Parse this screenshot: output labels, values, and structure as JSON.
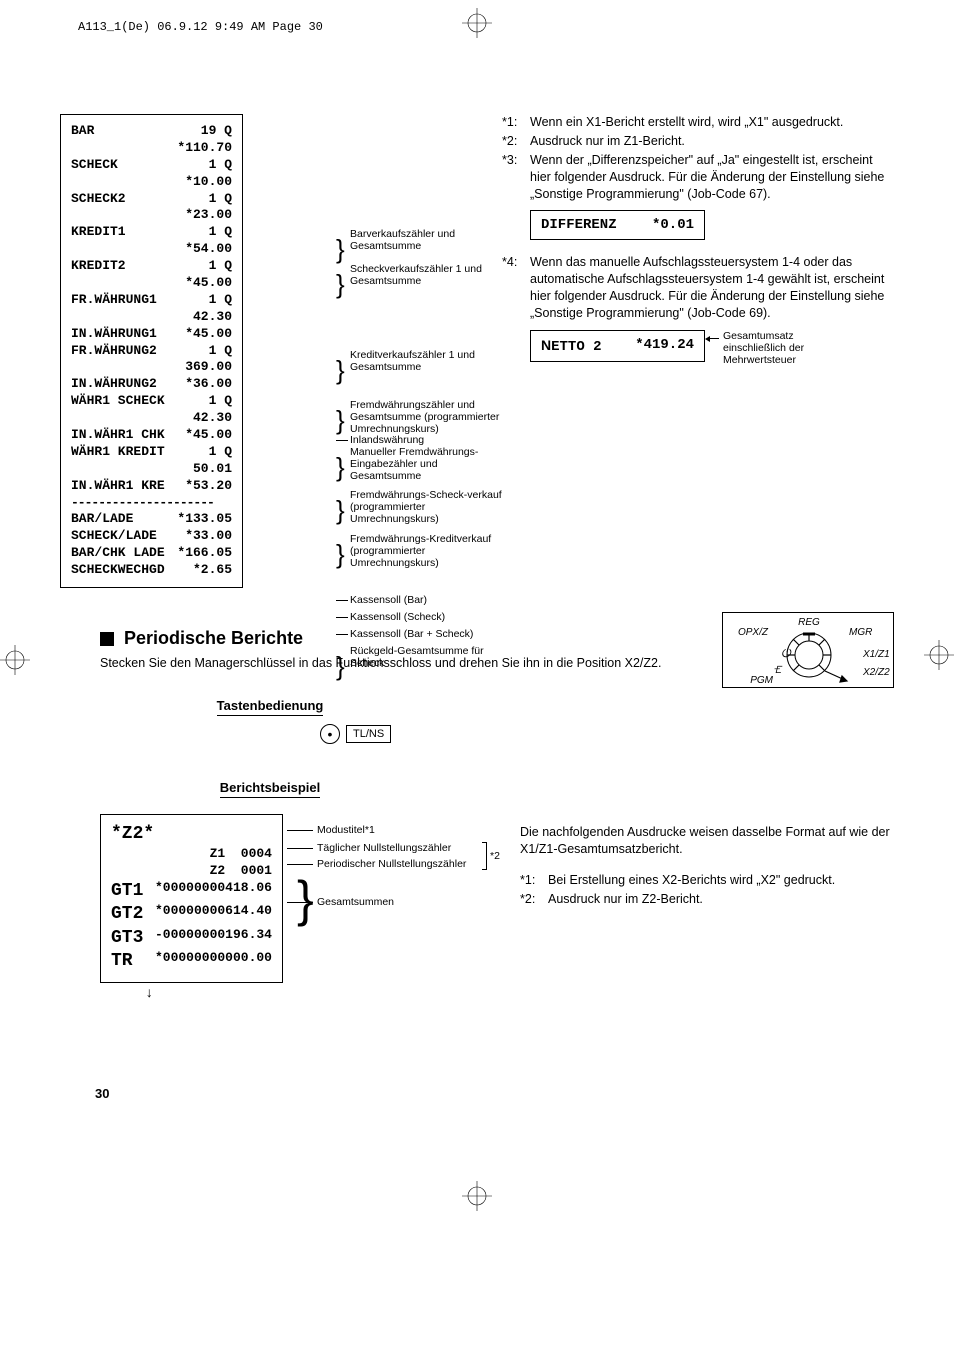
{
  "header": "A113_1(De)  06.9.12 9:49 AM  Page 30",
  "receipt1": {
    "rows": [
      [
        "BAR",
        "19 Q"
      ],
      [
        "",
        "*110.70"
      ],
      [
        "SCHECK",
        "1 Q"
      ],
      [
        "",
        "*10.00"
      ],
      [
        "SCHECK2",
        "1 Q"
      ],
      [
        "",
        "*23.00"
      ],
      [
        "KREDIT1",
        "1 Q"
      ],
      [
        "",
        "*54.00"
      ],
      [
        "KREDIT2",
        "1 Q"
      ],
      [
        "",
        "*45.00"
      ],
      [
        "FR.WÄHRUNG1",
        "1 Q"
      ],
      [
        "",
        "42.30"
      ],
      [
        "IN.WÄHRUNG1",
        "*45.00"
      ],
      [
        "FR.WÄHRUNG2",
        "1 Q"
      ],
      [
        "",
        "369.00"
      ],
      [
        "IN.WÄHRUNG2",
        "*36.00"
      ],
      [
        "WÄHR1 SCHECK",
        "1 Q"
      ],
      [
        "",
        "42.30"
      ],
      [
        "IN.WÄHR1 CHK",
        "*45.00"
      ],
      [
        "WÄHR1 KREDIT",
        "1 Q"
      ],
      [
        "",
        "50.01"
      ],
      [
        "IN.WÄHR1 KRE",
        "*53.20"
      ]
    ],
    "sep": "---------------------",
    "bottom": [
      [
        "BAR/LADE",
        "*133.05"
      ],
      [
        "SCHECK/LADE",
        "*33.00"
      ],
      [
        "BAR/CHK LADE",
        "*166.05"
      ],
      [
        "SCHECKWECHGD",
        "*2.65"
      ]
    ]
  },
  "anno1": [
    "Barverkaufszähler und Gesamtsumme",
    "Scheckverkaufszähler 1 und Gesamtsumme",
    "Kreditverkaufszähler 1 und Gesamtsumme",
    "Fremdwährungszähler und Gesamtsumme (programmierter Umrechnungskurs)",
    "Inlandswährung",
    "Manueller Fremdwährungs-Eingabezähler und Gesamtsumme",
    "Fremdwährungs-Scheck-verkauf (programmierter Umrechnungskurs)",
    "Fremdwährungs-Kreditverkauf (programmierter Umrechnungskurs)",
    "Kassensoll (Bar)",
    "Kassensoll (Scheck)",
    "Kassensoll (Bar + Scheck)",
    "Rückgeld-Gesamtsumme für Scheck"
  ],
  "notes": [
    {
      "k": "*1:",
      "v": "Wenn ein X1-Bericht erstellt wird, wird „X1\" ausgedruckt."
    },
    {
      "k": "*2:",
      "v": "Ausdruck nur im Z1-Bericht."
    },
    {
      "k": "*3:",
      "v": "Wenn der „Differenzspeicher\" auf „Ja\" eingestellt ist, erscheint hier folgender Ausdruck. Für die Änderung der Einstellung siehe „Sonstige Programmierung\" (Job-Code 67)."
    }
  ],
  "differenz": {
    "label": "DIFFERENZ",
    "value": "*0.01"
  },
  "note4": {
    "k": "*4:",
    "v": "Wenn das manuelle Aufschlagssteuersystem 1-4 oder das automatische Aufschlagssteuersystem 1-4 gewählt ist, erscheint hier folgender Ausdruck. Für die Änderung der Einstellung siehe „Sonstige Programmierung\" (Job-Code 69)."
  },
  "netto": {
    "label": "NETTO 2",
    "value": "*419.24",
    "side": "Gesamtumsatz einschließlich der Mehrwertsteuer"
  },
  "section_title": "Periodische Berichte",
  "section_body": "Stecken Sie den Managerschlüssel in das Funktionsschloss und drehen Sie ihn in die Position X2/Z2.",
  "sub_tasten": "Tastenbedienung",
  "key_dot": "•",
  "key_tlns": "TL/NS",
  "sub_bericht": "Berichtsbeispiel",
  "dial": {
    "reg": "REG",
    "opxz": "OPX/Z",
    "mgr": "MGR",
    "x1z1": "X1/Z1",
    "x2z2": "X2/Z2",
    "pgm": "PGM"
  },
  "z2": {
    "title": "*Z2*",
    "rows": [
      [
        "",
        "Z1  0004"
      ],
      [
        "",
        "Z2  0001"
      ],
      [
        "GT1",
        "*00000000418.06"
      ],
      [
        "GT2",
        "*00000000614.40"
      ],
      [
        "GT3",
        "-00000000196.34"
      ],
      [
        "TR",
        "*00000000000.00"
      ]
    ],
    "arrow": "↓"
  },
  "z2_anno": [
    "Modustitel*1",
    "Täglicher Nullstellungszähler",
    "Periodischer Nullstellungszähler",
    "Gesamtsummen"
  ],
  "z2_star2": "*2",
  "right_body": "Die nachfolgenden Ausdrucke weisen dasselbe Format auf wie der X1/Z1-Gesamtumsatzbericht.",
  "right_notes": [
    {
      "k": "*1:",
      "v": "Bei Erstellung eines X2-Berichts wird „X2\" gedruckt."
    },
    {
      "k": "*2:",
      "v": "Ausdruck nur im Z2-Bericht."
    }
  ],
  "page_number": "30"
}
